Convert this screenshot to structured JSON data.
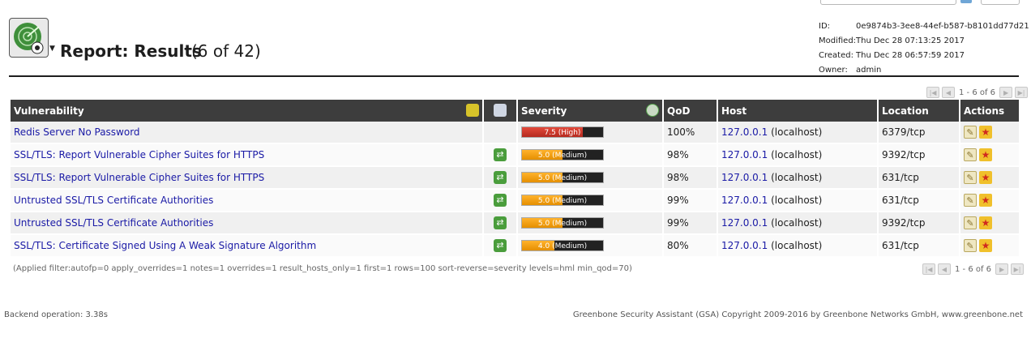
{
  "report": {
    "title": "Report: Results",
    "count": "(6 of 42)"
  },
  "meta": {
    "id_label": "ID:",
    "id": "0e9874b3-3ee8-44ef-b587-b8101dd77d21",
    "modified_label": "Modified:",
    "modified": "Thu Dec 28 07:13:25 2017",
    "created_label": "Created:",
    "created": "Thu Dec 28 06:57:59 2017",
    "owner_label": "Owner:",
    "owner": "admin"
  },
  "pagination": {
    "text": "1 - 6 of 6"
  },
  "table": {
    "headers": {
      "vulnerability": "Vulnerability",
      "severity": "Severity",
      "qod": "QoD",
      "host": "Host",
      "location": "Location",
      "actions": "Actions"
    },
    "rows": [
      {
        "name": "Redis Server No Password",
        "has_delta": false,
        "severity": 7.5,
        "severity_label": "7.5 (High)",
        "level": "high",
        "qod": "100%",
        "host_ip": "127.0.0.1",
        "host_name": "(localhost)",
        "location": "6379/tcp"
      },
      {
        "name": "SSL/TLS: Report Vulnerable Cipher Suites for HTTPS",
        "has_delta": true,
        "severity": 5.0,
        "severity_label": "5.0 (Medium)",
        "level": "medium",
        "qod": "98%",
        "host_ip": "127.0.0.1",
        "host_name": "(localhost)",
        "location": "9392/tcp"
      },
      {
        "name": "SSL/TLS: Report Vulnerable Cipher Suites for HTTPS",
        "has_delta": true,
        "severity": 5.0,
        "severity_label": "5.0 (Medium)",
        "level": "medium",
        "qod": "98%",
        "host_ip": "127.0.0.1",
        "host_name": "(localhost)",
        "location": "631/tcp"
      },
      {
        "name": "Untrusted SSL/TLS Certificate Authorities",
        "has_delta": true,
        "severity": 5.0,
        "severity_label": "5.0 (Medium)",
        "level": "medium",
        "qod": "99%",
        "host_ip": "127.0.0.1",
        "host_name": "(localhost)",
        "location": "631/tcp"
      },
      {
        "name": "Untrusted SSL/TLS Certificate Authorities",
        "has_delta": true,
        "severity": 5.0,
        "severity_label": "5.0 (Medium)",
        "level": "medium",
        "qod": "99%",
        "host_ip": "127.0.0.1",
        "host_name": "(localhost)",
        "location": "9392/tcp"
      },
      {
        "name": "SSL/TLS: Certificate Signed Using A Weak Signature Algorithm",
        "has_delta": true,
        "severity": 4.0,
        "severity_label": "4.0 (Medium)",
        "level": "medium",
        "qod": "80%",
        "host_ip": "127.0.0.1",
        "host_name": "(localhost)",
        "location": "631/tcp"
      }
    ]
  },
  "filter": "(Applied filter:autofp=0 apply_overrides=1 notes=1 overrides=1 result_hosts_only=1 first=1 rows=100 sort-reverse=severity levels=hml min_qod=70)",
  "footer": {
    "backend": "Backend operation: 3.38s",
    "copyright": "Greenbone Security Assistant (GSA) Copyright 2009-2016 by Greenbone Networks GmbH, www.greenbone.net"
  },
  "colors": {
    "high": "#d13a2c",
    "medium": "#f5a01a",
    "header_bg": "#3d3d3d",
    "link": "#1a1aa6"
  }
}
